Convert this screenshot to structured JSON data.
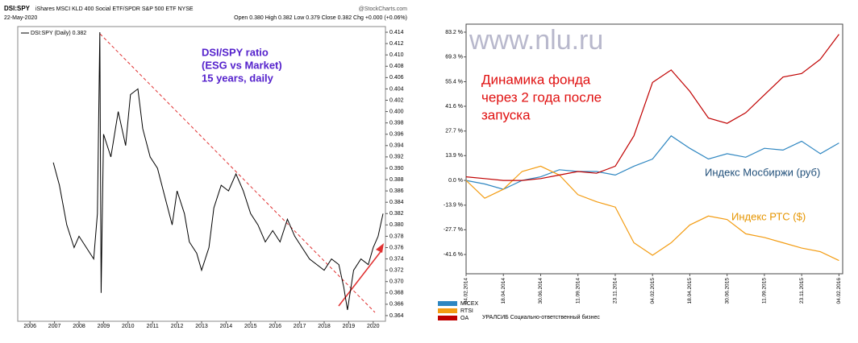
{
  "chart_data": [
    {
      "type": "line",
      "symbol": "DSI:SPY",
      "subtitle": "iShares MSCI KLD 400 Social ETF/SPDR S&P 500 ETF NYSE",
      "source": "@StockCharts.com",
      "date": "22-May-2020",
      "quote": "Open 0.380  High 0.382  Low 0.379  Close 0.382  Chg +0.000 (+0.06%)",
      "annotation": [
        "DSI/SPY ratio",
        "(ESG vs Market)",
        "15 years, daily"
      ],
      "x": [
        2006.95,
        2007.2,
        2007.5,
        2007.8,
        2008.0,
        2008.3,
        2008.6,
        2008.75,
        2008.85,
        2008.9,
        2009.0,
        2009.3,
        2009.6,
        2009.9,
        2010.1,
        2010.4,
        2010.6,
        2010.9,
        2011.2,
        2011.5,
        2011.8,
        2012.0,
        2012.3,
        2012.5,
        2012.8,
        2013.0,
        2013.3,
        2013.5,
        2013.8,
        2014.1,
        2014.4,
        2014.7,
        2015.0,
        2015.3,
        2015.6,
        2015.9,
        2016.2,
        2016.5,
        2016.8,
        2017.1,
        2017.4,
        2017.7,
        2018.0,
        2018.3,
        2018.6,
        2018.8,
        2018.95,
        2019.2,
        2019.5,
        2019.8,
        2020.0,
        2020.2,
        2020.4
      ],
      "series": [
        {
          "name": "DSI:SPY (Daily) 0.382",
          "color": "#000000",
          "values": [
            0.391,
            0.387,
            0.38,
            0.376,
            0.378,
            0.376,
            0.374,
            0.382,
            0.414,
            0.368,
            0.396,
            0.392,
            0.4,
            0.394,
            0.403,
            0.404,
            0.397,
            0.392,
            0.39,
            0.385,
            0.38,
            0.386,
            0.382,
            0.377,
            0.375,
            0.372,
            0.376,
            0.383,
            0.387,
            0.386,
            0.389,
            0.386,
            0.382,
            0.38,
            0.377,
            0.379,
            0.377,
            0.381,
            0.378,
            0.376,
            0.374,
            0.373,
            0.372,
            0.374,
            0.373,
            0.369,
            0.365,
            0.372,
            0.374,
            0.373,
            0.376,
            0.378,
            0.382
          ]
        }
      ],
      "xlim": [
        2005.5,
        2020.5
      ],
      "xticks": [
        2006,
        2007,
        2008,
        2009,
        2010,
        2011,
        2012,
        2013,
        2014,
        2015,
        2016,
        2017,
        2018,
        2019,
        2020
      ],
      "ylim": [
        0.363,
        0.415
      ],
      "yticks": [
        0.364,
        0.366,
        0.368,
        {
          "value": 0.37,
          "label": "0.370"
        },
        0.372,
        0.374,
        0.376,
        0.378,
        {
          "value": 0.38,
          "label": "0.380"
        },
        0.382,
        0.384,
        0.386,
        0.388,
        {
          "value": 0.39,
          "label": "0.390"
        },
        0.392,
        0.394,
        0.396,
        0.398,
        {
          "value": 0.4,
          "label": "0.400"
        },
        0.402,
        0.404,
        0.406,
        0.408,
        {
          "value": 0.41,
          "label": "0.410"
        },
        0.412,
        0.414
      ],
      "grid": false
    },
    {
      "type": "line",
      "watermark": "www.nlu.ru",
      "annotation": [
        "Динамика фонда",
        "через 2 года после",
        "запуска"
      ],
      "micex_label": "Индекс Мосбиржи (руб)",
      "rts_label": "Индекс РТС ($)",
      "oa_description": "УРАЛСИБ Социально-ответственный бизнес",
      "x": [
        0,
        0.5,
        1,
        1.5,
        2,
        2.5,
        3,
        3.5,
        4,
        4.5,
        5,
        5.5,
        6,
        6.5,
        7,
        7.5,
        8,
        8.5,
        9,
        9.5,
        10
      ],
      "series": [
        {
          "name": "MICEX",
          "color": "#2e86c1",
          "values": [
            0,
            -2,
            -5,
            0,
            2,
            6,
            5,
            5,
            3,
            8,
            12,
            25,
            18,
            12,
            15,
            13,
            18,
            17,
            22,
            15,
            21
          ]
        },
        {
          "name": "RTSI",
          "color": "#f39c12",
          "values": [
            0,
            -10,
            -5,
            5,
            8,
            3,
            -8,
            -12,
            -15,
            -35,
            -42,
            -35,
            -25,
            -20,
            -22,
            -30,
            -32,
            -35,
            -38,
            -40,
            -45
          ]
        },
        {
          "name": "OA",
          "color": "#c00000",
          "values": [
            2,
            1,
            0,
            0,
            1,
            3,
            5,
            4,
            8,
            25,
            55,
            62,
            50,
            35,
            32,
            38,
            48,
            58,
            60,
            68,
            82
          ]
        }
      ],
      "xlim": [
        0,
        10.1
      ],
      "xticks": [
        {
          "value": 0,
          "label": "04.02.2014"
        },
        {
          "value": 1,
          "label": "18.04.2014"
        },
        {
          "value": 2,
          "label": "30.06.2014"
        },
        {
          "value": 3,
          "label": "11.09.2014"
        },
        {
          "value": 4,
          "label": "23.11.2014"
        },
        {
          "value": 5,
          "label": "04.02.2015"
        },
        {
          "value": 6,
          "label": "18.04.2015"
        },
        {
          "value": 7,
          "label": "30.06.2015"
        },
        {
          "value": 8,
          "label": "11.09.2015"
        },
        {
          "value": 9,
          "label": "23.11.2015"
        },
        {
          "value": 10,
          "label": "04.02.2016"
        }
      ],
      "ylim": [
        -52.4,
        87.7
      ],
      "yticks": [
        {
          "value": 83.2,
          "label": "83.2 %"
        },
        {
          "value": 69.3,
          "label": "69.3 %"
        },
        {
          "value": 55.4,
          "label": "55.4 %"
        },
        {
          "value": 41.6,
          "label": "41.6 %"
        },
        {
          "value": 27.7,
          "label": "27.7 %"
        },
        {
          "value": 13.9,
          "label": "13.9 %"
        },
        {
          "value": 0,
          "label": "0.0 %"
        },
        {
          "value": -13.9,
          "label": "-13.9 %"
        },
        {
          "value": -27.7,
          "label": "-27.7 %"
        },
        {
          "value": -41.6,
          "label": "-41.6 %"
        }
      ],
      "grid": false
    }
  ]
}
